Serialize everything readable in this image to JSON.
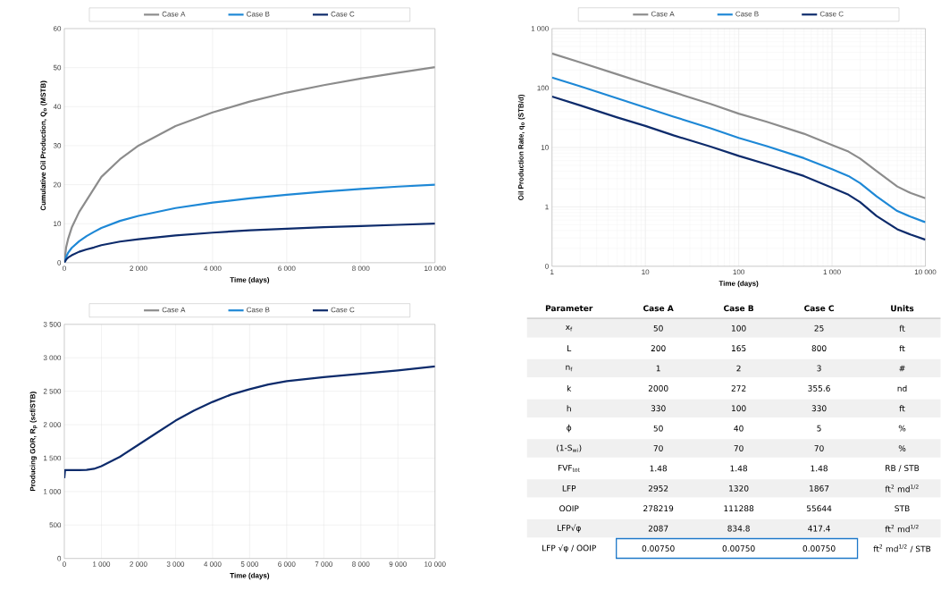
{
  "chart_data": [
    {
      "type": "line",
      "xlabel": "Time (days)",
      "ylabel": "Cumulative Oil Production, Q$_{o}$ (MSTB)",
      "x": [
        0,
        50,
        100,
        200,
        400,
        600,
        800,
        1000,
        1500,
        2000,
        3000,
        4000,
        5000,
        6000,
        7000,
        8000,
        9000,
        10000
      ],
      "series": [
        {
          "name": "Case A",
          "color": "#8c8c8c",
          "values": [
            0,
            4,
            6,
            9,
            13,
            16,
            19,
            22,
            26.5,
            30,
            35,
            38.5,
            41.3,
            43.6,
            45.5,
            47.2,
            48.7,
            50.1
          ]
        },
        {
          "name": "Case B",
          "color": "#1e88d6",
          "values": [
            0,
            1.5,
            2.5,
            3.8,
            5.5,
            6.8,
            7.9,
            8.9,
            10.7,
            12,
            14,
            15.4,
            16.5,
            17.4,
            18.2,
            18.9,
            19.5,
            20.0
          ]
        },
        {
          "name": "Case C",
          "color": "#0d2b6b",
          "values": [
            0,
            0.8,
            1.3,
            1.9,
            2.8,
            3.4,
            3.9,
            4.5,
            5.4,
            6,
            7,
            7.7,
            8.3,
            8.7,
            9.1,
            9.4,
            9.7,
            10.0
          ]
        }
      ],
      "xlim": [
        0,
        10000
      ],
      "ylim": [
        0,
        60
      ],
      "xticks": [
        0,
        {
          "value": 2000,
          "label": "2 000"
        },
        {
          "value": 4000,
          "label": "4 000"
        },
        {
          "value": 6000,
          "label": "6 000"
        },
        {
          "value": 8000,
          "label": "8 000"
        },
        {
          "value": 10000,
          "label": "10 000"
        }
      ],
      "yticks": [
        0,
        10,
        20,
        30,
        40,
        50,
        60
      ],
      "grid": true,
      "legend": "top"
    },
    {
      "type": "line",
      "xlabel": "Time (days)",
      "ylabel": "Oil Production Rate, q$_{o}$ (STB/d)",
      "log": "xy",
      "x": [
        1,
        2,
        5,
        10,
        20,
        50,
        100,
        200,
        500,
        1000,
        1500,
        2000,
        3000,
        5000,
        7000,
        10000
      ],
      "series": [
        {
          "name": "Case A",
          "color": "#8c8c8c",
          "values": [
            380,
            270,
            170,
            120,
            85,
            54,
            37,
            27,
            17,
            11,
            8.5,
            6.5,
            4,
            2.2,
            1.7,
            1.4
          ]
        },
        {
          "name": "Case B",
          "color": "#1e88d6",
          "values": [
            150,
            107,
            67,
            47,
            33,
            21,
            14.5,
            10.5,
            6.6,
            4.3,
            3.3,
            2.5,
            1.5,
            0.85,
            0.68,
            0.55
          ]
        },
        {
          "name": "Case C",
          "color": "#0d2b6b",
          "values": [
            72,
            51,
            32,
            23,
            16,
            10.3,
            7.2,
            5.2,
            3.3,
            2.1,
            1.6,
            1.2,
            0.7,
            0.42,
            0.34,
            0.28
          ]
        }
      ],
      "xlim": [
        1,
        10000
      ],
      "ylim": [
        0.1,
        1000
      ],
      "xticks": [
        1,
        10,
        100,
        {
          "value": 1000,
          "label": "1 000"
        },
        {
          "value": 10000,
          "label": "10 000"
        }
      ],
      "yticks": [
        {
          "value": 0.1,
          "label": "0"
        },
        1,
        10,
        100,
        {
          "value": 1000,
          "label": "1 000"
        }
      ],
      "grid": true,
      "legend": "top"
    },
    {
      "type": "line",
      "xlabel": "Time (days)",
      "ylabel": "Producing  GOR, R$_{p}$  (scf/STB)",
      "x": [
        0,
        20,
        200,
        400,
        600,
        800,
        1000,
        1500,
        2000,
        2500,
        3000,
        3500,
        4000,
        4500,
        5000,
        5500,
        6000,
        7000,
        8000,
        9000,
        10000
      ],
      "series": [
        {
          "name": "Case A",
          "color": "#8c8c8c",
          "values": [
            null,
            null,
            null,
            null,
            null,
            null,
            null,
            null,
            null,
            null,
            null,
            null,
            null,
            null,
            null,
            null,
            null,
            null,
            null,
            null,
            null
          ]
        },
        {
          "name": "Case B",
          "color": "#1e88d6",
          "values": [
            null,
            null,
            null,
            null,
            null,
            null,
            null,
            null,
            null,
            null,
            null,
            null,
            null,
            null,
            null,
            null,
            null,
            null,
            null,
            null,
            null
          ]
        },
        {
          "name": "Case C",
          "color": "#0d2b6b",
          "values": [
            1200,
            1320,
            1320,
            1320,
            1325,
            1340,
            1380,
            1520,
            1700,
            1880,
            2060,
            2210,
            2340,
            2450,
            2530,
            2600,
            2650,
            2710,
            2760,
            2810,
            2870
          ]
        }
      ],
      "xlim": [
        0,
        10000
      ],
      "ylim": [
        0,
        3500
      ],
      "xticks": [
        0,
        {
          "value": 1000,
          "label": "1 000"
        },
        {
          "value": 2000,
          "label": "2 000"
        },
        {
          "value": 3000,
          "label": "3 000"
        },
        {
          "value": 4000,
          "label": "4 000"
        },
        {
          "value": 5000,
          "label": "5 000"
        },
        {
          "value": 6000,
          "label": "6 000"
        },
        {
          "value": 7000,
          "label": "7 000"
        },
        {
          "value": 8000,
          "label": "8 000"
        },
        {
          "value": 9000,
          "label": "9 000"
        },
        {
          "value": 10000,
          "label": "10 000"
        }
      ],
      "yticks": [
        0,
        500,
        {
          "value": 1000,
          "label": "1 000"
        },
        {
          "value": 1500,
          "label": "1 500"
        },
        {
          "value": 2000,
          "label": "2 000"
        },
        {
          "value": 2500,
          "label": "2 500"
        },
        {
          "value": 3000,
          "label": "3 000"
        },
        {
          "value": 3500,
          "label": "3 500"
        }
      ],
      "grid": true,
      "legend": "top"
    },
    {
      "type": "other",
      "annotations": [
        "**Parameter**",
        "**Case A**",
        "**Case B**",
        "**Case C**",
        "**Units**",
        "x$_{f}$",
        "50",
        "100",
        "25",
        "ft",
        "L",
        "200",
        "165",
        "800",
        "ft",
        "n$_{f}$",
        "1",
        "2",
        "3",
        "#",
        "k",
        "2000",
        "272",
        "355.6",
        "nd",
        "h",
        "330",
        "100",
        "330",
        "ft",
        "ϕ",
        "50",
        "40",
        "5",
        "%",
        "(1-S$_{wi}$)",
        "70",
        "70",
        "70",
        "%",
        "FVF$_{tot}$",
        "1.48",
        "1.48",
        "1.48",
        "RB / STB",
        "LFP",
        "2952",
        "1320",
        "1867",
        "ft$^{2}$ md$^{1/2}$",
        "OOIP",
        "278219",
        "111288",
        "55644",
        "STB",
        "LFP√φ",
        "2087",
        "834.8",
        "417.4",
        "ft$^{2}$ md$^{1/2}$",
        "LFP √φ / OOIP",
        "0.00750",
        "0.00750",
        "0.00750",
        "ft$^{2}$ md$^{1/2}$ / STB"
      ]
    }
  ]
}
